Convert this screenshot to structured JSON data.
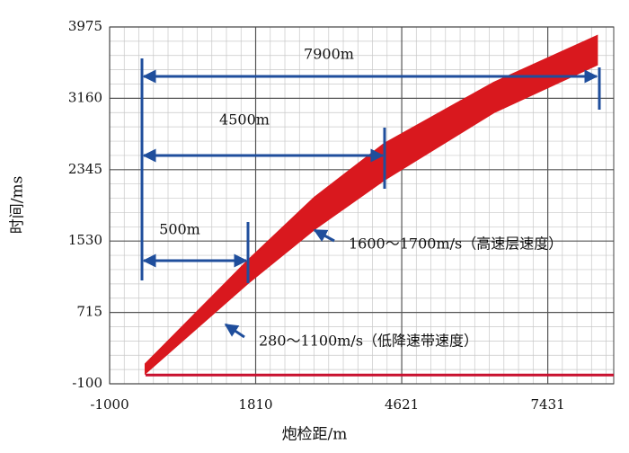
{
  "chart_data": {
    "type": "band",
    "xlabel": "炮检距/m",
    "ylabel": "时间/ms",
    "xlim": [
      -1000,
      8700
    ],
    "ylim": [
      -100,
      3975
    ],
    "xticks": [
      -1000,
      1810,
      4621,
      7431
    ],
    "yticks": [
      -100,
      715,
      1530,
      2345,
      3160,
      3975
    ],
    "grid": true,
    "x": [
      -309,
      1660,
      2938,
      4285,
      6392,
      8378
    ],
    "series": [
      {
        "color": "#d9181e",
        "values": [
          126,
          1306,
          2025,
          2641,
          3339,
          3872
        ]
      },
      {
        "color": "#d9181e",
        "values": [
          23,
          1050,
          1665,
          2230,
          3000,
          3544
        ]
      },
      {
        "color": "#c8102e",
        "x": [
          -309,
          8700
        ],
        "values": [
          0,
          0
        ]
      }
    ],
    "annotations": [
      "7900m",
      "4500m",
      "500m",
      "1600～1700m/s（高速层速度）",
      "280～1100m/s（低降速带速度）"
    ]
  }
}
